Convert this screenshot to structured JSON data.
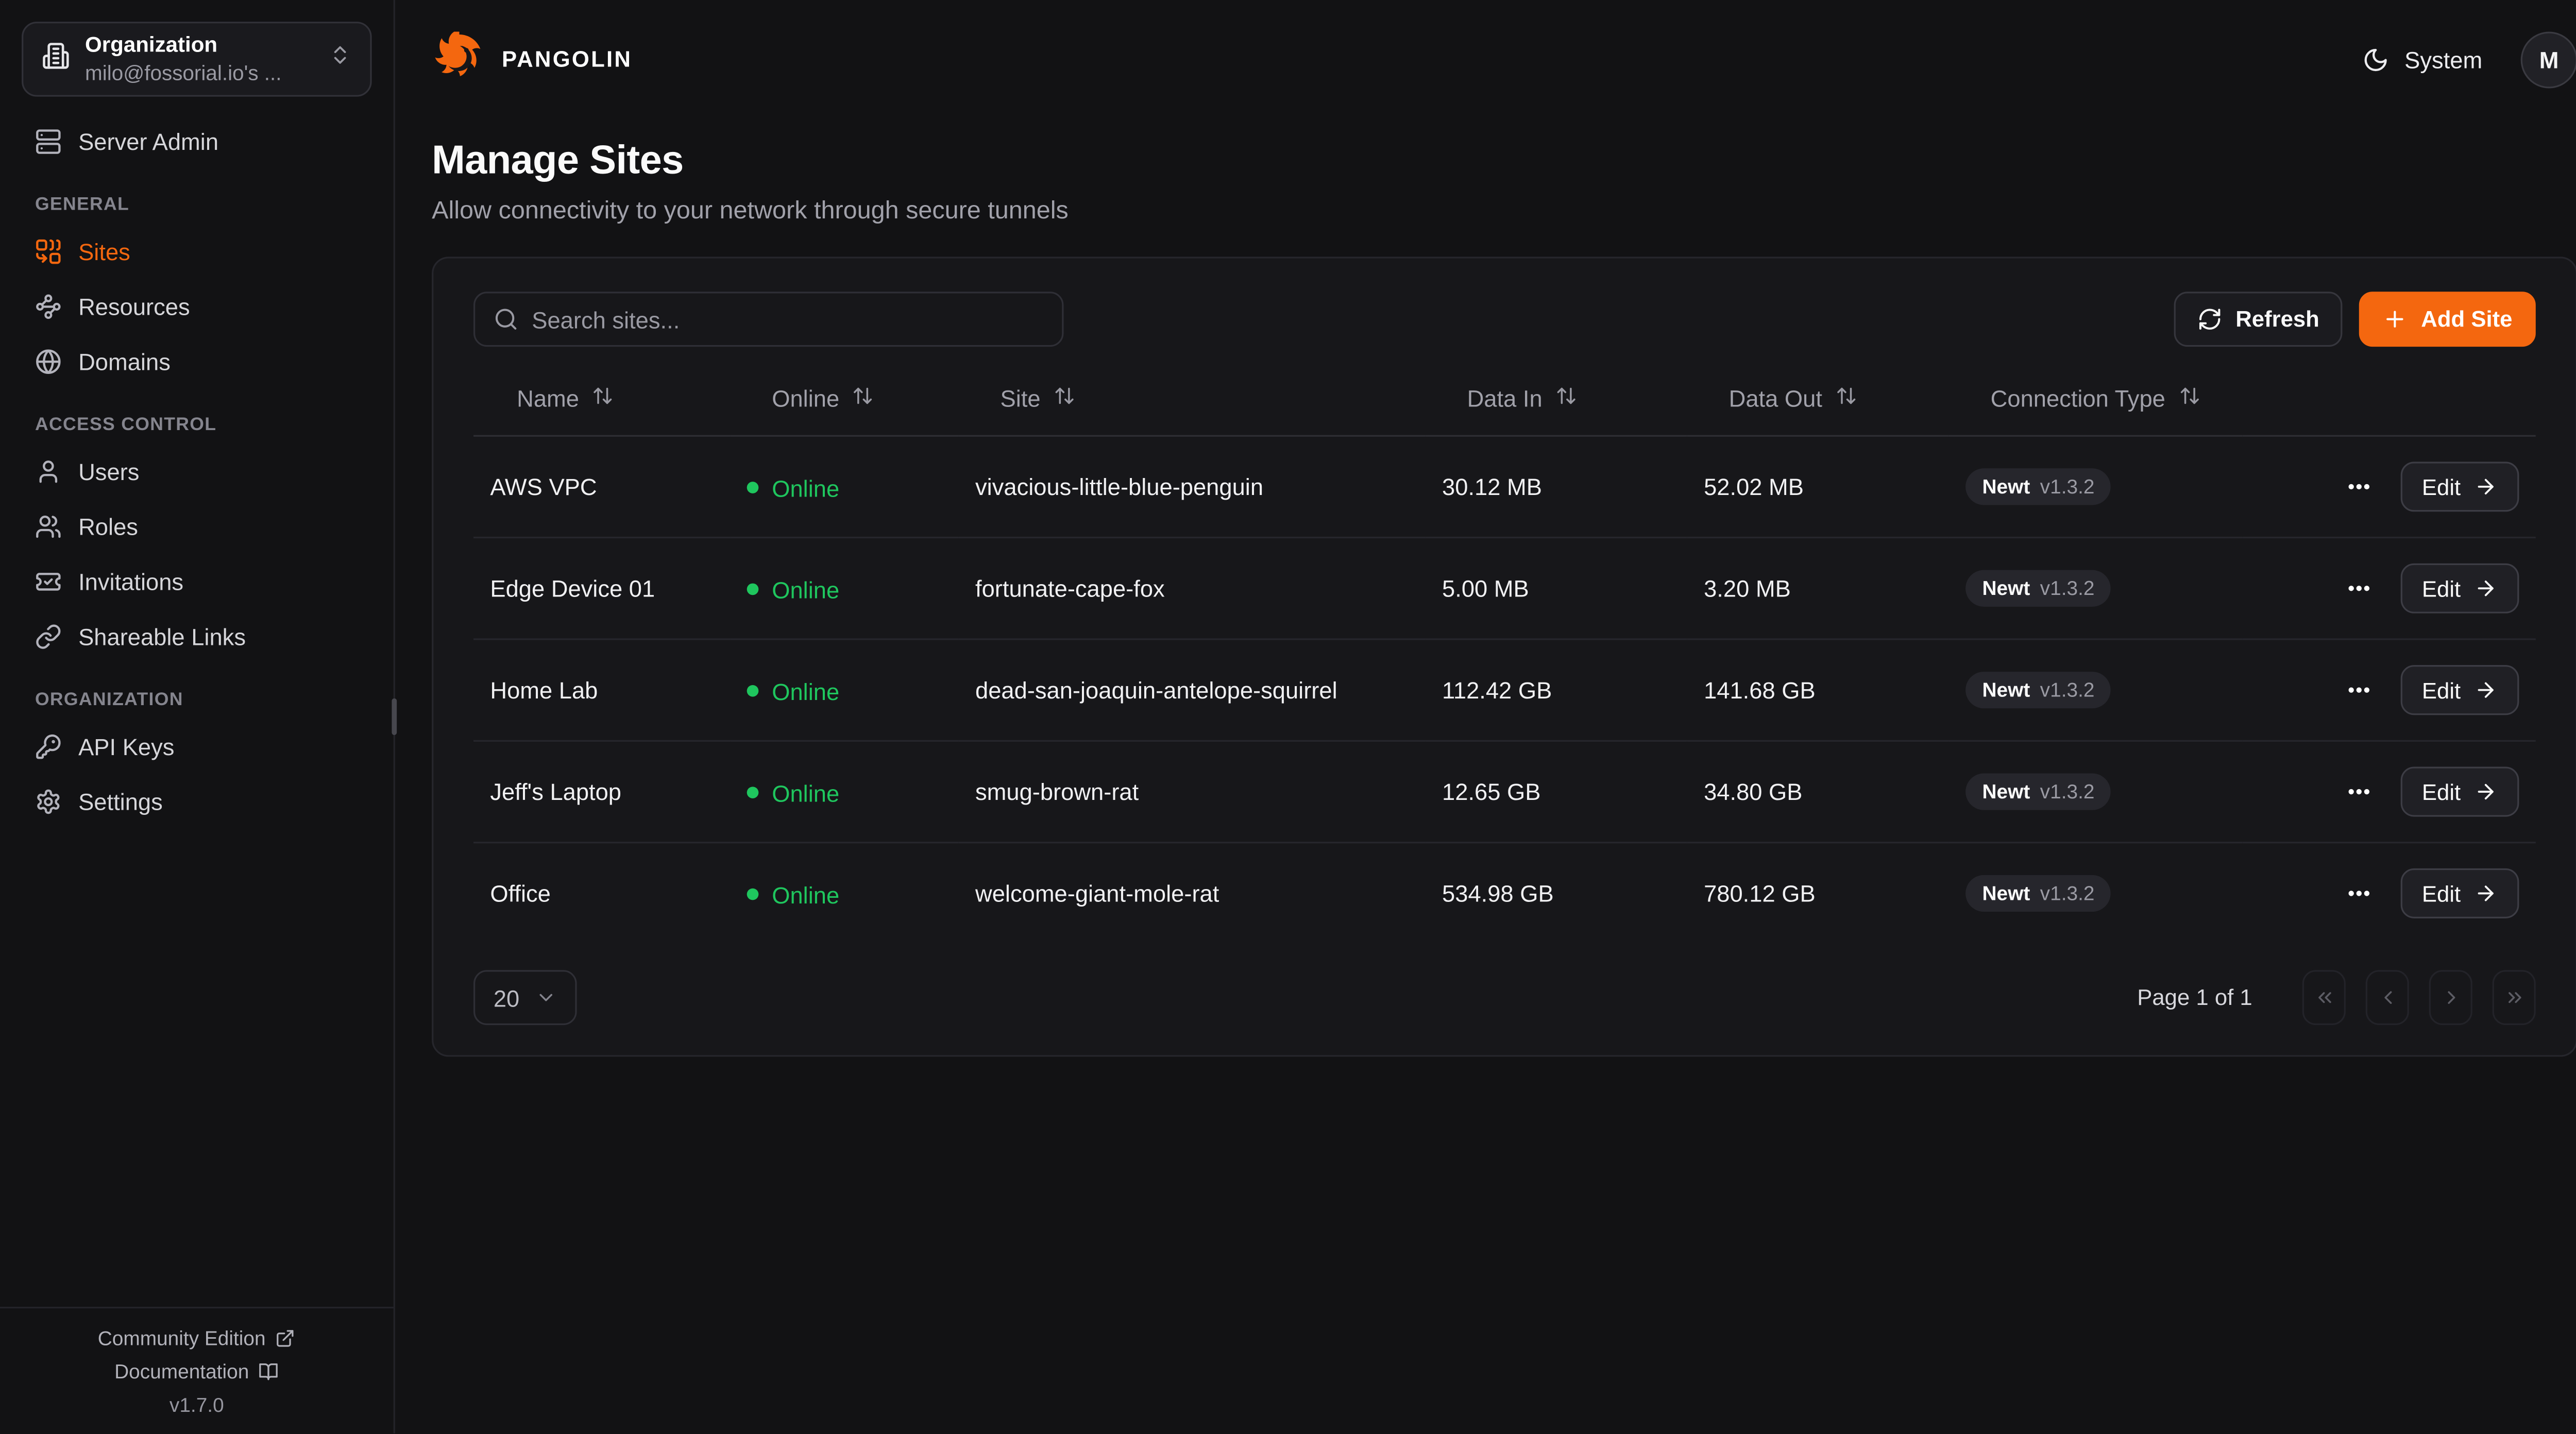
{
  "app": {
    "brand": "PANGOLIN",
    "theme_toggle_label": "System",
    "avatar_initial": "M"
  },
  "sidebar": {
    "org_switcher": {
      "label": "Organization",
      "value": "milo@fossorial.io's ...",
      "icon": "building"
    },
    "top_items": [
      {
        "label": "Server Admin",
        "icon": "server"
      }
    ],
    "sections": [
      {
        "label": "GENERAL",
        "items": [
          {
            "label": "Sites",
            "icon": "combine",
            "active": true
          },
          {
            "label": "Resources",
            "icon": "waypoints",
            "active": false
          },
          {
            "label": "Domains",
            "icon": "globe",
            "active": false
          }
        ]
      },
      {
        "label": "ACCESS CONTROL",
        "items": [
          {
            "label": "Users",
            "icon": "user",
            "active": false
          },
          {
            "label": "Roles",
            "icon": "users",
            "active": false
          },
          {
            "label": "Invitations",
            "icon": "ticket-check",
            "active": false
          },
          {
            "label": "Shareable Links",
            "icon": "link",
            "active": false
          }
        ]
      },
      {
        "label": "ORGANIZATION",
        "items": [
          {
            "label": "API Keys",
            "icon": "key",
            "active": false
          },
          {
            "label": "Settings",
            "icon": "settings",
            "active": false
          }
        ]
      }
    ],
    "footer": {
      "community_label": "Community Edition",
      "docs_label": "Documentation",
      "version": "v1.7.0"
    }
  },
  "page": {
    "title": "Manage Sites",
    "subtitle": "Allow connectivity to your network through secure tunnels"
  },
  "toolbar": {
    "search_placeholder": "Search sites...",
    "refresh_label": "Refresh",
    "add_site_label": "Add Site"
  },
  "table": {
    "columns": [
      "Name",
      "Online",
      "Site",
      "Data In",
      "Data Out",
      "Connection Type"
    ],
    "edit_label": "Edit",
    "rows": [
      {
        "name": "AWS VPC",
        "status": "Online",
        "site": "vivacious-little-blue-penguin",
        "data_in": "30.12 MB",
        "data_out": "52.02 MB",
        "conn_type": "Newt",
        "conn_version": "v1.3.2"
      },
      {
        "name": "Edge Device 01",
        "status": "Online",
        "site": "fortunate-cape-fox",
        "data_in": "5.00 MB",
        "data_out": "3.20 MB",
        "conn_type": "Newt",
        "conn_version": "v1.3.2"
      },
      {
        "name": "Home Lab",
        "status": "Online",
        "site": "dead-san-joaquin-antelope-squirrel",
        "data_in": "112.42 GB",
        "data_out": "141.68 GB",
        "conn_type": "Newt",
        "conn_version": "v1.3.2"
      },
      {
        "name": "Jeff's Laptop",
        "status": "Online",
        "site": "smug-brown-rat",
        "data_in": "12.65 GB",
        "data_out": "34.80 GB",
        "conn_type": "Newt",
        "conn_version": "v1.3.2"
      },
      {
        "name": "Office",
        "status": "Online",
        "site": "welcome-giant-mole-rat",
        "data_in": "534.98 GB",
        "data_out": "780.12 GB",
        "conn_type": "Newt",
        "conn_version": "v1.3.2"
      }
    ]
  },
  "pagination": {
    "page_size": "20",
    "status": "Page 1 of 1"
  },
  "colors": {
    "accent": "#f4670f",
    "online_green": "#1fc65e",
    "background": "#121214",
    "card": "#17171a"
  }
}
